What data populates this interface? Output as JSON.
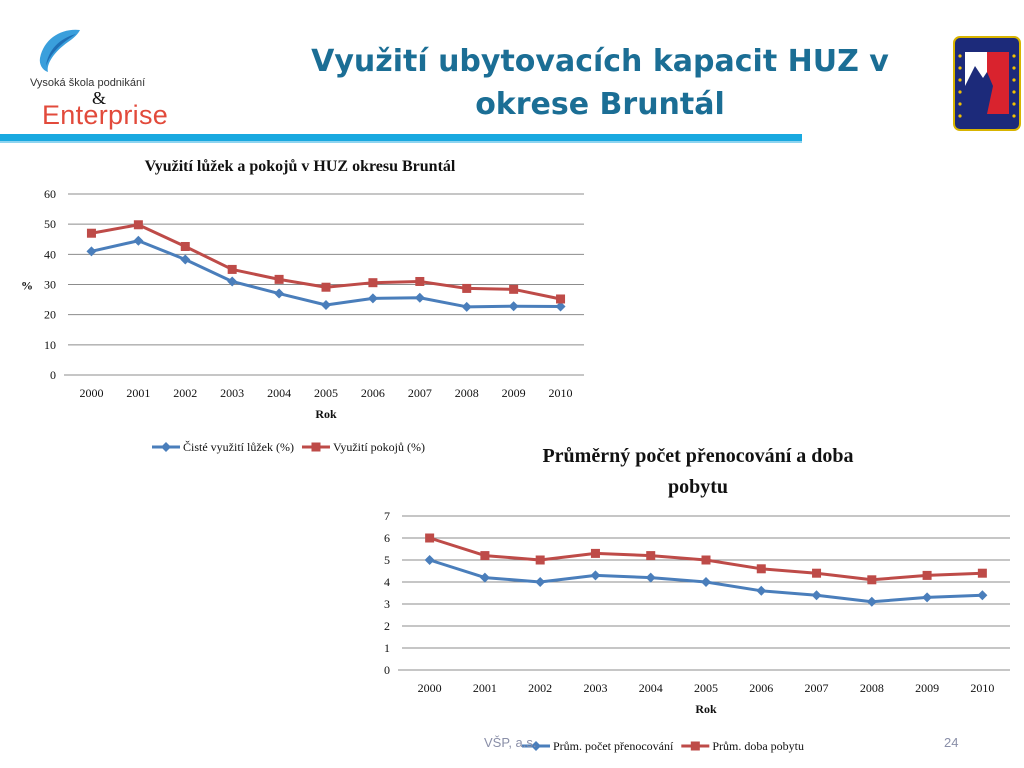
{
  "slide": {
    "title_line1": "Využití ubytovacích kapacit HUZ v",
    "title_line2": "okrese Bruntál",
    "logo": {
      "icon": "feather-swoosh-icon",
      "school_name": "Vysoká škola podnikání",
      "ampersand": "&",
      "brand": "Enterprise"
    },
    "euroregion_logo": {
      "icon": "euroregion-praded-emblem"
    },
    "footer_left": "VŠP, a.s.",
    "page_number": "24",
    "colors": {
      "title": "#1b6e95",
      "rule": "#19a9e0",
      "series_blue": "#4a7ebb",
      "series_red": "#be4b48",
      "brand": "#e24a3b"
    }
  },
  "chart_data": [
    {
      "type": "line",
      "title": "Využití lůžek a pokojů v HUZ okresu Bruntál",
      "xlabel": "Rok",
      "ylabel": "%",
      "x": [
        "2000",
        "2001",
        "2002",
        "2003",
        "2004",
        "2005",
        "2006",
        "2007",
        "2008",
        "2009",
        "2010"
      ],
      "ylim": [
        0,
        60
      ],
      "yticks": [
        0,
        10,
        20,
        30,
        40,
        50,
        60
      ],
      "grid": true,
      "legend": "bottom",
      "series": [
        {
          "name": "Čisté využití lůžek (%)",
          "color": "#4a7ebb",
          "marker": "diamond",
          "values": [
            41,
            44.5,
            38.3,
            31,
            27,
            23.2,
            25.4,
            25.6,
            22.6,
            22.8,
            22.7
          ]
        },
        {
          "name": "Využití pokojů (%)",
          "color": "#be4b48",
          "marker": "square",
          "values": [
            47,
            49.8,
            42.6,
            35,
            31.7,
            29.1,
            30.6,
            31,
            28.7,
            28.4,
            25.2
          ]
        }
      ]
    },
    {
      "type": "line",
      "title": "Průměrný počet přenocování a doba pobytu",
      "xlabel": "Rok",
      "ylabel": "",
      "x": [
        "2000",
        "2001",
        "2002",
        "2003",
        "2004",
        "2005",
        "2006",
        "2007",
        "2008",
        "2009",
        "2010"
      ],
      "ylim": [
        0,
        7
      ],
      "yticks": [
        0,
        1,
        2,
        3,
        4,
        5,
        6,
        7
      ],
      "grid": true,
      "legend": "bottom",
      "series": [
        {
          "name": "Prům. počet přenocování",
          "color": "#4a7ebb",
          "marker": "diamond",
          "values": [
            5.0,
            4.2,
            4.0,
            4.3,
            4.2,
            4.0,
            3.6,
            3.4,
            3.1,
            3.3,
            3.4
          ]
        },
        {
          "name": "Prům. doba pobytu",
          "color": "#be4b48",
          "marker": "square",
          "values": [
            6.0,
            5.2,
            5.0,
            5.3,
            5.2,
            5.0,
            4.6,
            4.4,
            4.1,
            4.3,
            4.4
          ]
        }
      ]
    }
  ]
}
